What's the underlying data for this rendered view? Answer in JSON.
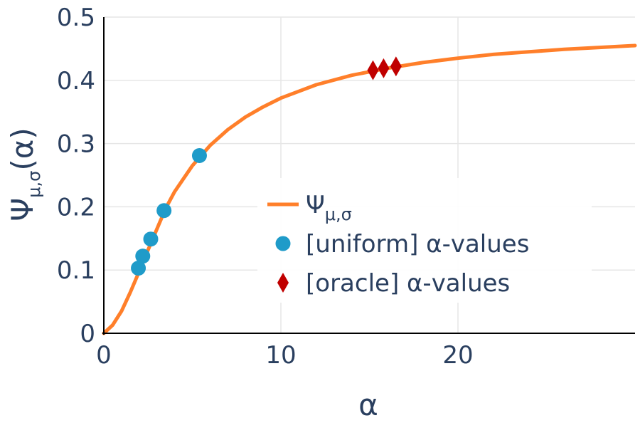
{
  "chart_data": {
    "type": "line",
    "title": "",
    "xlabel": "α",
    "ylabel": {
      "main": "Ψ",
      "sub": "μ,σ",
      "suffix": "(α)"
    },
    "xlim": [
      0,
      30
    ],
    "ylim": [
      0,
      0.5
    ],
    "x_ticks": [
      0,
      10,
      20
    ],
    "x_tick_labels": [
      "0",
      "10",
      "20"
    ],
    "y_ticks": [
      0,
      0.1,
      0.2,
      0.3,
      0.4,
      0.5
    ],
    "y_tick_labels": [
      "0",
      "0.1",
      "0.2",
      "0.3",
      "0.4",
      "0.5"
    ],
    "grid": true,
    "legend_position": "center-right",
    "series": [
      {
        "name": {
          "main": "Ψ",
          "sub": "μ,σ"
        },
        "mode": "line",
        "color": "#ff7f2a",
        "x": [
          0,
          0.5,
          1,
          1.5,
          2,
          2.5,
          3,
          3.5,
          4,
          5,
          6,
          7,
          8,
          9,
          10,
          12,
          14,
          16,
          18,
          20,
          22,
          24,
          26,
          28,
          30
        ],
        "y": [
          0,
          0.013,
          0.035,
          0.065,
          0.098,
          0.132,
          0.165,
          0.198,
          0.224,
          0.265,
          0.297,
          0.322,
          0.342,
          0.358,
          0.372,
          0.393,
          0.408,
          0.419,
          0.428,
          0.435,
          0.441,
          0.445,
          0.449,
          0.452,
          0.455
        ]
      },
      {
        "name": "[uniform] α-values",
        "mode": "markers",
        "marker": "circle",
        "color": "#1f9bc9",
        "x": [
          1.95,
          2.2,
          2.65,
          3.4,
          5.4
        ],
        "y": [
          0.103,
          0.122,
          0.149,
          0.194,
          0.281
        ]
      },
      {
        "name": "[oracle] α-values",
        "mode": "markers",
        "marker": "diamond",
        "color": "#c00000",
        "x": [
          15.2,
          15.8,
          16.5
        ],
        "y": [
          0.416,
          0.419,
          0.422
        ]
      }
    ]
  }
}
